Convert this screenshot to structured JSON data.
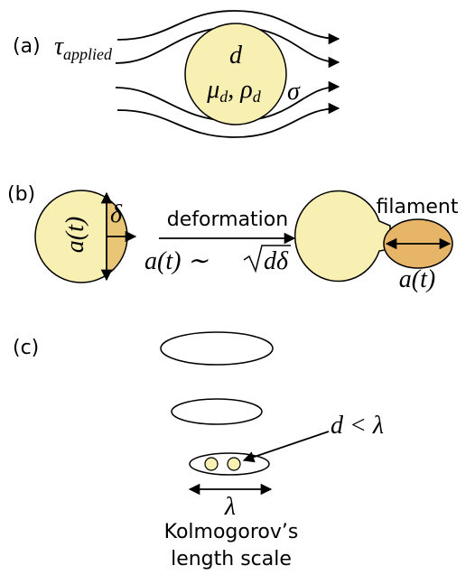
{
  "panel_a": {
    "label": "(a)",
    "stress_symbol": "τ",
    "stress_subscript": "applied",
    "droplet_size": "d",
    "viscosity": "μ",
    "viscosity_subscript": "d",
    "separator": ", ",
    "density": "ρ",
    "density_subscript": "d",
    "surface_tension": "σ"
  },
  "panel_b": {
    "label": "(b)",
    "radius": "a(t)",
    "thickness": "δ",
    "process": "deformation",
    "scaling_left": "a(t) ∼ ",
    "scaling_root": "dδ",
    "filament": "filament",
    "filament_radius": "a(t)"
  },
  "panel_c": {
    "label": "(c)",
    "condition": "d < λ",
    "scale_symbol": "λ",
    "caption_line1": "Kolmogorov’s",
    "caption_line2": "length scale"
  }
}
